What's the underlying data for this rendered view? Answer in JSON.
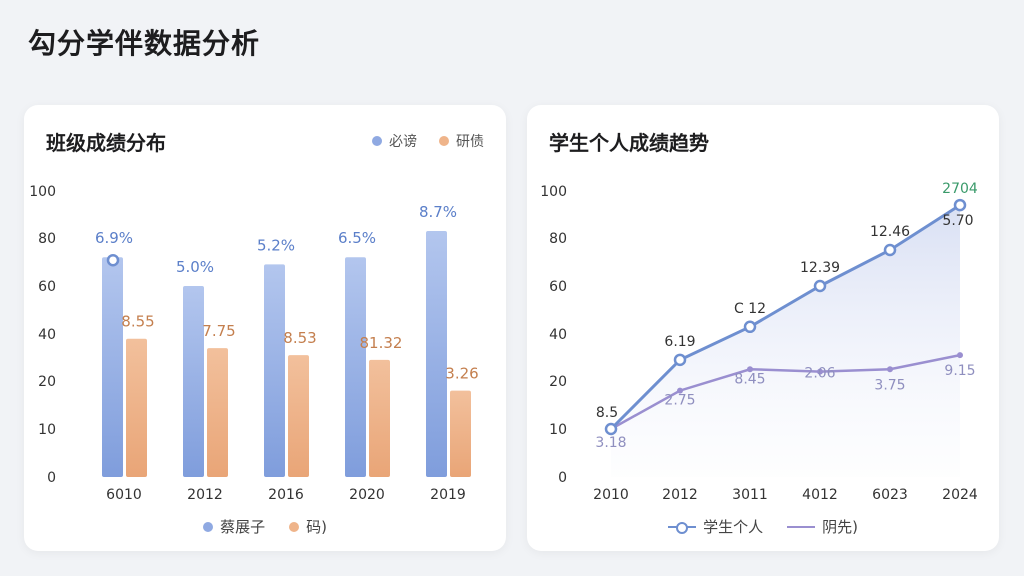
{
  "page": {
    "title": "勾分学伴数据分析"
  },
  "colors": {
    "blue": "#7f9fe0",
    "orange": "#eeb083",
    "line_blue": "#6e8fd0",
    "line_purple": "#9a8fd0"
  },
  "left_chart": {
    "title": "班级成绩分布",
    "top_legend": [
      "必谤",
      "研债"
    ],
    "bottom_legend": [
      "蔡展子",
      "码)"
    ],
    "y_ticks": [
      "100",
      "80",
      "60",
      "40",
      "20",
      "10",
      "0"
    ],
    "categories": [
      "6010",
      "2012",
      "2016",
      "2020",
      "2019"
    ]
  },
  "right_chart": {
    "title": "学生个人成绩趋势",
    "bottom_legend": [
      "学生个人",
      "阴先)"
    ],
    "y_ticks": [
      "100",
      "80",
      "60",
      "40",
      "20",
      "10",
      "0"
    ],
    "categories": [
      "2010",
      "2012",
      "3011",
      "4012",
      "6023",
      "2024"
    ],
    "extra_label": "2704"
  },
  "chart_data": [
    {
      "type": "bar",
      "title": "班级成绩分布",
      "categories": [
        "6010",
        "2012",
        "2016",
        "2020",
        "2019"
      ],
      "ylim": [
        0,
        100
      ],
      "y_ticks": [
        "100",
        "80",
        "60",
        "40",
        "20",
        "10",
        "0"
      ],
      "series": [
        {
          "name": "必谤",
          "values": [
            72,
            60,
            69,
            72,
            83
          ],
          "labels": [
            "6.9%",
            "5.0%",
            "5.2%",
            "6.5%",
            "8.7%"
          ]
        },
        {
          "name": "研债",
          "values": [
            38,
            34,
            31,
            29,
            18
          ],
          "labels": [
            "8.55",
            "7.75",
            "8.53",
            "81.32",
            "3.26"
          ]
        }
      ],
      "legend": "top-right"
    },
    {
      "type": "line",
      "title": "学生个人成绩趋势",
      "categories": [
        "2010",
        "2012",
        "3011",
        "4012",
        "6023",
        "2024"
      ],
      "ylim": [
        0,
        100
      ],
      "y_ticks": [
        "100",
        "80",
        "60",
        "40",
        "20",
        "10",
        "0"
      ],
      "series": [
        {
          "name": "学生个人",
          "values": [
            10,
            29,
            43,
            60,
            75,
            94
          ],
          "labels": [
            "8.5",
            "6.19",
            "C 12",
            "12.39",
            "12.46",
            "5.70"
          ]
        },
        {
          "name": "阴先)",
          "values": [
            10,
            18,
            25,
            24,
            25,
            31
          ],
          "labels": [
            "3.18",
            "2.75",
            "8.45",
            "2.06",
            "3.75",
            "9.15"
          ]
        }
      ],
      "legend": "bottom"
    }
  ]
}
